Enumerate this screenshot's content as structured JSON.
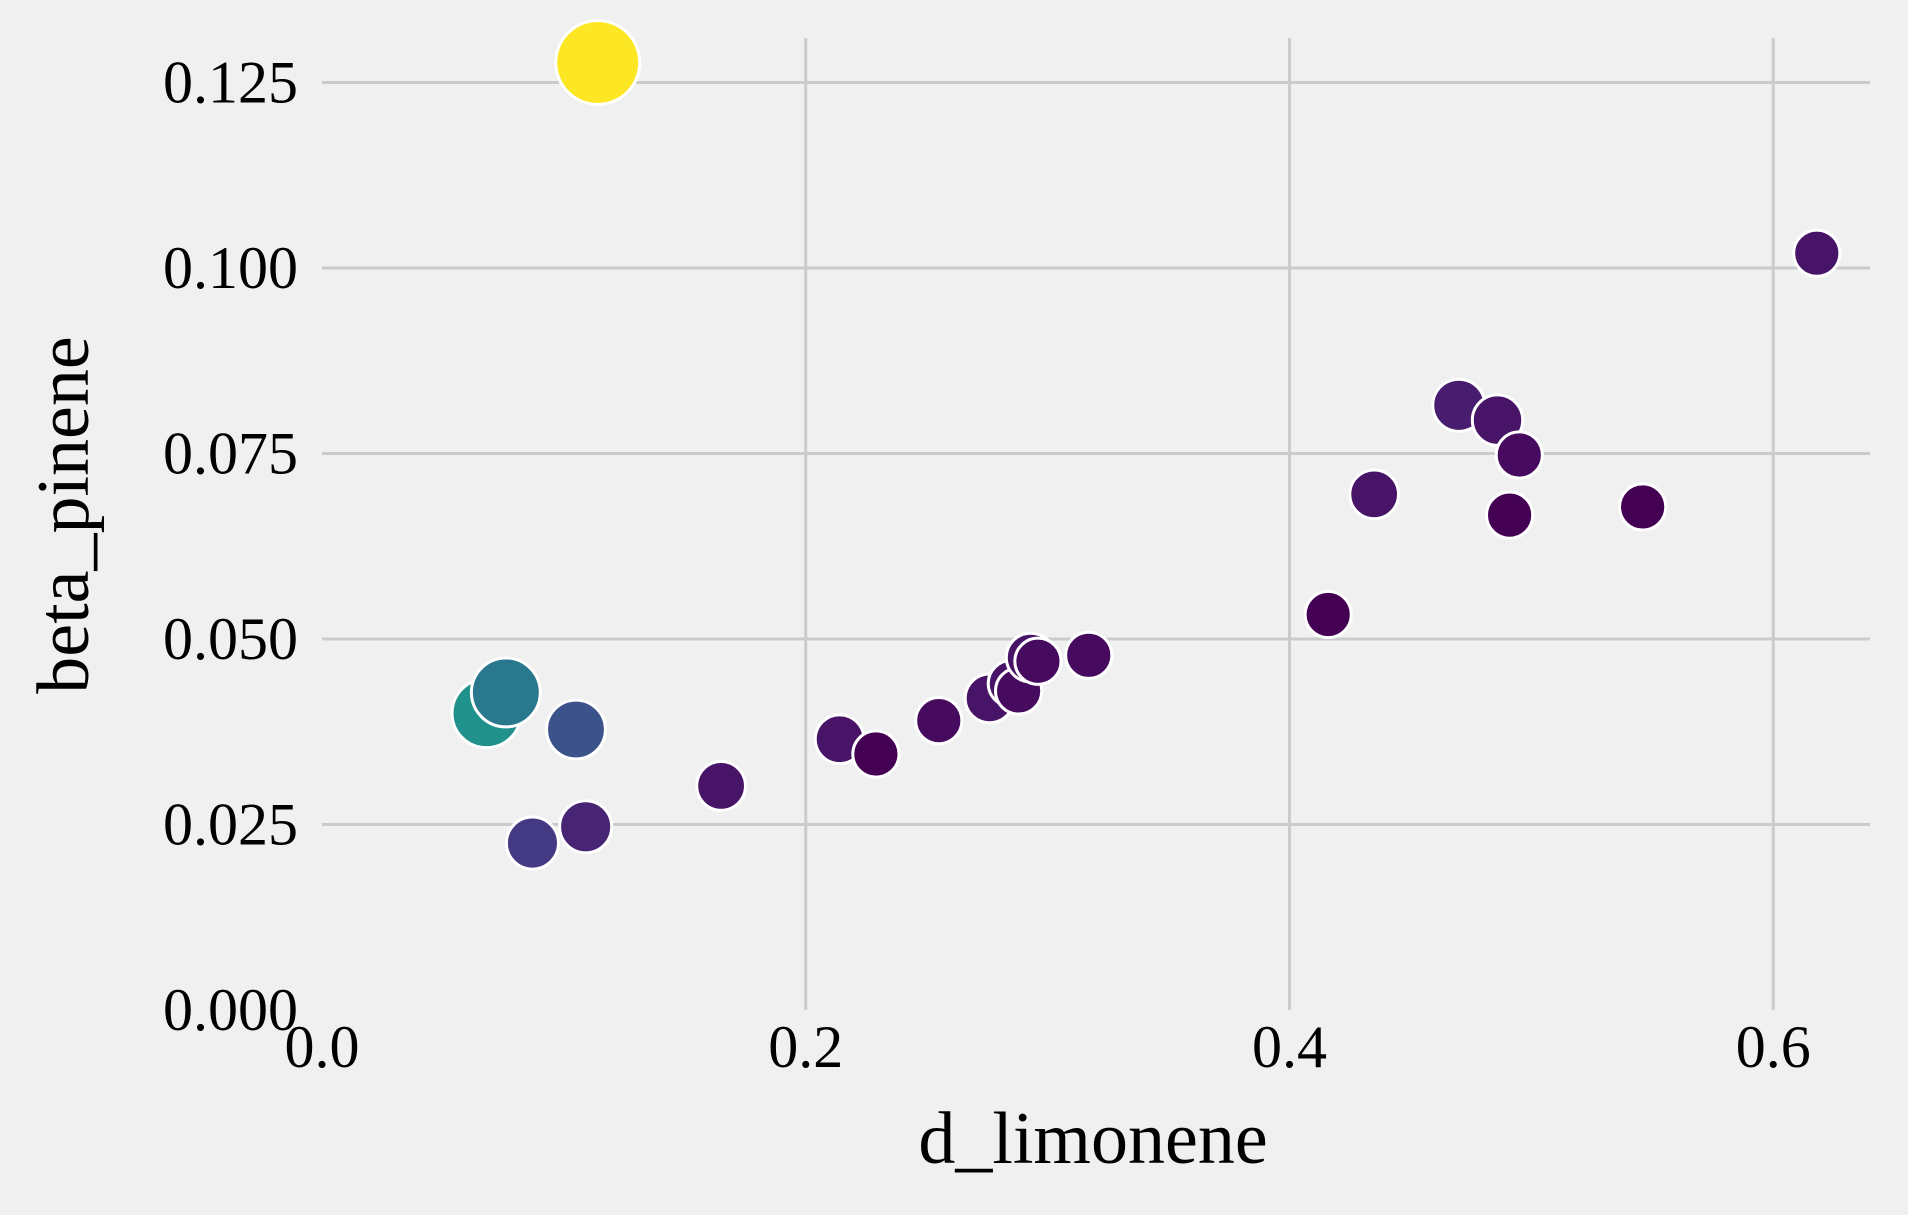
{
  "chart_data": {
    "type": "scatter",
    "title": "",
    "xlabel": "d_limonene",
    "ylabel": "beta_pinene",
    "xlim": [
      0.0,
      0.64
    ],
    "ylim": [
      0.0,
      0.131
    ],
    "grid": true,
    "x_ticks": [
      {
        "value": 0.0,
        "label": "0.0"
      },
      {
        "value": 0.2,
        "label": "0.2"
      },
      {
        "value": 0.4,
        "label": "0.4"
      },
      {
        "value": 0.6,
        "label": "0.6"
      }
    ],
    "y_ticks": [
      {
        "value": 0.0,
        "label": "0.000"
      },
      {
        "value": 0.025,
        "label": "0.025"
      },
      {
        "value": 0.05,
        "label": "0.050"
      },
      {
        "value": 0.075,
        "label": "0.075"
      },
      {
        "value": 0.1,
        "label": "0.100"
      },
      {
        "value": 0.125,
        "label": "0.125"
      }
    ],
    "points": [
      {
        "x": 0.114,
        "y": 0.1277,
        "size": 1.0,
        "color": "#fde725"
      },
      {
        "x": 0.068,
        "y": 0.04,
        "size": 0.82,
        "color": "#21918c"
      },
      {
        "x": 0.076,
        "y": 0.0428,
        "size": 0.82,
        "color": "#2a788e"
      },
      {
        "x": 0.105,
        "y": 0.0378,
        "size": 0.7,
        "color": "#3b528b"
      },
      {
        "x": 0.087,
        "y": 0.0225,
        "size": 0.62,
        "color": "#443983"
      },
      {
        "x": 0.109,
        "y": 0.0247,
        "size": 0.62,
        "color": "#482475"
      },
      {
        "x": 0.165,
        "y": 0.0302,
        "size": 0.58,
        "color": "#481467"
      },
      {
        "x": 0.214,
        "y": 0.0365,
        "size": 0.58,
        "color": "#481467"
      },
      {
        "x": 0.229,
        "y": 0.0345,
        "size": 0.55,
        "color": "#440154"
      },
      {
        "x": 0.255,
        "y": 0.039,
        "size": 0.55,
        "color": "#460b5e"
      },
      {
        "x": 0.276,
        "y": 0.042,
        "size": 0.58,
        "color": "#481467"
      },
      {
        "x": 0.285,
        "y": 0.044,
        "size": 0.55,
        "color": "#481467"
      },
      {
        "x": 0.288,
        "y": 0.043,
        "size": 0.55,
        "color": "#460b5e"
      },
      {
        "x": 0.293,
        "y": 0.0475,
        "size": 0.58,
        "color": "#481467"
      },
      {
        "x": 0.296,
        "y": 0.047,
        "size": 0.55,
        "color": "#460b5e"
      },
      {
        "x": 0.317,
        "y": 0.0478,
        "size": 0.55,
        "color": "#460b5e"
      },
      {
        "x": 0.416,
        "y": 0.0533,
        "size": 0.55,
        "color": "#440154"
      },
      {
        "x": 0.435,
        "y": 0.0695,
        "size": 0.58,
        "color": "#481467"
      },
      {
        "x": 0.47,
        "y": 0.0815,
        "size": 0.62,
        "color": "#481c6e"
      },
      {
        "x": 0.486,
        "y": 0.0795,
        "size": 0.6,
        "color": "#481467"
      },
      {
        "x": 0.495,
        "y": 0.0748,
        "size": 0.55,
        "color": "#460b5e"
      },
      {
        "x": 0.491,
        "y": 0.0667,
        "size": 0.55,
        "color": "#440154"
      },
      {
        "x": 0.546,
        "y": 0.0678,
        "size": 0.55,
        "color": "#440154"
      },
      {
        "x": 0.618,
        "y": 0.102,
        "size": 0.55,
        "color": "#481467"
      }
    ]
  }
}
